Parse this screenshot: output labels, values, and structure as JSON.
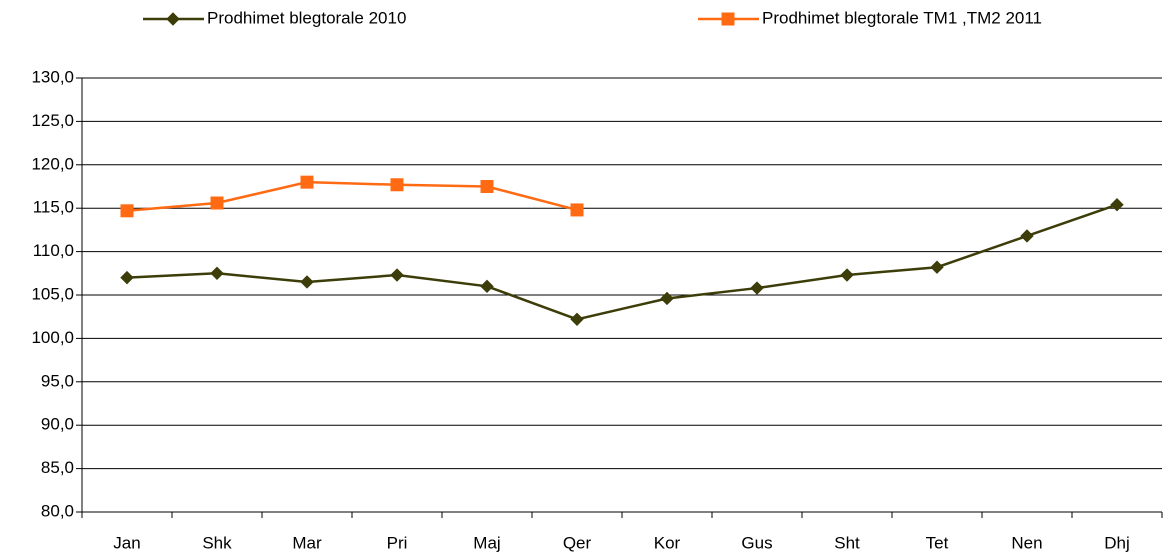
{
  "chart_data": {
    "type": "line",
    "categories": [
      "Jan",
      "Shk",
      "Mar",
      "Pri",
      "Maj",
      "Qer",
      "Kor",
      "Gus",
      "Sht",
      "Tet",
      "Nen",
      "Dhj"
    ],
    "series": [
      {
        "name": "Prodhimet blegtorale 2010",
        "color": "#3d3d0a",
        "marker": "diamond",
        "values": [
          107.0,
          107.5,
          106.5,
          107.3,
          106.0,
          102.2,
          104.6,
          105.8,
          107.3,
          108.2,
          111.8,
          115.4
        ]
      },
      {
        "name": "Prodhimet blegtorale TM1 ,TM2 2011",
        "color": "#ff6a13",
        "marker": "square",
        "values": [
          114.7,
          115.6,
          118.0,
          117.7,
          117.5,
          114.8,
          null,
          null,
          null,
          null,
          null,
          null
        ]
      }
    ],
    "ylim": [
      80,
      130
    ],
    "yticks": [
      {
        "value": 80,
        "label": "80,0"
      },
      {
        "value": 85,
        "label": "85,0"
      },
      {
        "value": 90,
        "label": "90,0"
      },
      {
        "value": 95,
        "label": "95,0"
      },
      {
        "value": 100,
        "label": "100,0"
      },
      {
        "value": 105,
        "label": "105,0"
      },
      {
        "value": 110,
        "label": "110,0"
      },
      {
        "value": 115,
        "label": "115,0"
      },
      {
        "value": 120,
        "label": "120,0"
      },
      {
        "value": 125,
        "label": "125,0"
      },
      {
        "value": 130,
        "label": "130,0"
      }
    ],
    "grid": true,
    "legend": "top"
  }
}
